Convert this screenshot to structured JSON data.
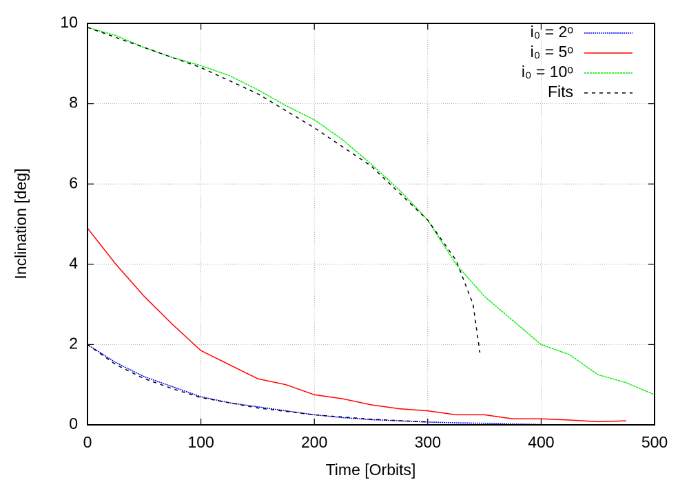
{
  "chart_data": {
    "type": "line",
    "x_label": "Time [Orbits]",
    "y_label": "Inclination [deg]",
    "x": [
      0,
      25,
      50,
      75,
      100,
      125,
      150,
      175,
      200,
      225,
      250,
      275,
      300,
      325,
      350,
      375,
      400,
      425,
      450,
      475,
      500
    ],
    "series": [
      {
        "name": "i₀ = 2ᵒ",
        "color": "#0000ff",
        "dash": "2 1",
        "values": [
          2.0,
          1.55,
          1.2,
          0.95,
          0.7,
          0.55,
          0.45,
          0.35,
          0.25,
          0.18,
          0.13,
          0.1,
          0.07,
          0.05,
          0.04,
          0.02,
          0.01,
          null,
          null,
          null,
          null
        ]
      },
      {
        "name": "i₀ = 5ᵒ",
        "color": "#ff0000",
        "values": [
          4.9,
          4.0,
          3.2,
          2.5,
          1.85,
          1.5,
          1.15,
          1.0,
          0.75,
          0.65,
          0.5,
          0.4,
          0.35,
          0.25,
          0.25,
          0.15,
          0.15,
          0.12,
          0.08,
          0.1,
          null
        ]
      },
      {
        "name": "i₀ = 10ᵒ",
        "color": "#00ee00",
        "dash": "3 1",
        "values": [
          9.9,
          9.7,
          9.4,
          9.15,
          8.95,
          8.7,
          8.35,
          7.95,
          7.6,
          7.1,
          6.5,
          5.85,
          5.1,
          4.0,
          3.2,
          2.6,
          2.0,
          1.75,
          1.25,
          1.05,
          0.75
        ]
      },
      {
        "name": "Fits",
        "color": "#000000",
        "dash": "5 6",
        "x": [
          0,
          50,
          100,
          150,
          200,
          250,
          300,
          325,
          340,
          346
        ],
        "values": [
          9.9,
          9.4,
          8.9,
          8.25,
          7.4,
          6.45,
          5.1,
          4.1,
          3.0,
          1.8
        ]
      },
      {
        "color": "#000000",
        "dash": "5 6",
        "x": [
          0,
          25,
          50,
          75,
          100,
          150,
          200,
          250,
          300
        ],
        "values": [
          2.0,
          1.5,
          1.15,
          0.9,
          0.68,
          0.42,
          0.25,
          0.14,
          0.07
        ]
      }
    ],
    "xlim": [
      0,
      500
    ],
    "xticks": [
      0,
      100,
      200,
      300,
      400,
      500
    ],
    "ylim": [
      0,
      10
    ],
    "yticks": [
      0,
      2,
      4,
      6,
      8,
      10
    ],
    "grid": true,
    "legend": "top-right"
  }
}
